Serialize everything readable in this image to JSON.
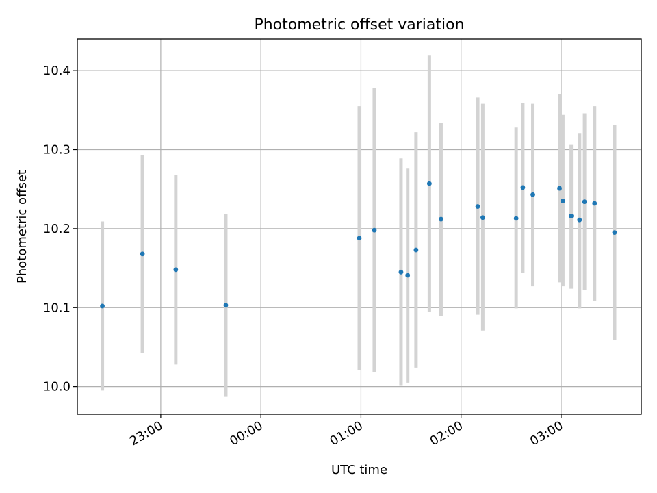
{
  "chart_data": {
    "type": "scatter",
    "title": "Photometric offset variation",
    "xlabel": "UTC time",
    "ylabel": "Photometric offset",
    "x_ticks": [
      "23:00",
      "00:00",
      "01:00",
      "02:00",
      "03:00"
    ],
    "y_ticks": [
      "10.0",
      "10.1",
      "10.2",
      "10.3",
      "10.4"
    ],
    "xlim": [
      "22:10",
      "03:48"
    ],
    "ylim": [
      9.965,
      10.44
    ],
    "grid": true,
    "colors": {
      "marker": "#1f77b4",
      "errorbar": "#d3d3d3",
      "grid": "#b0b0b0"
    },
    "series": [
      {
        "points": [
          {
            "x": "22:25",
            "y": 10.102,
            "ylow": 9.995,
            "yhigh": 10.209
          },
          {
            "x": "22:49",
            "y": 10.168,
            "ylow": 10.043,
            "yhigh": 10.293
          },
          {
            "x": "23:09",
            "y": 10.148,
            "ylow": 10.028,
            "yhigh": 10.268
          },
          {
            "x": "23:39",
            "y": 10.103,
            "ylow": 9.987,
            "yhigh": 10.219
          },
          {
            "x": "00:59",
            "y": 10.188,
            "ylow": 10.021,
            "yhigh": 10.355
          },
          {
            "x": "01:08",
            "y": 10.198,
            "ylow": 10.018,
            "yhigh": 10.378
          },
          {
            "x": "01:24",
            "y": 10.145,
            "ylow": 10.001,
            "yhigh": 10.289
          },
          {
            "x": "01:28",
            "y": 10.141,
            "ylow": 10.005,
            "yhigh": 10.276
          },
          {
            "x": "01:33",
            "y": 10.173,
            "ylow": 10.024,
            "yhigh": 10.322
          },
          {
            "x": "01:41",
            "y": 10.257,
            "ylow": 10.095,
            "yhigh": 10.419
          },
          {
            "x": "01:48",
            "y": 10.212,
            "ylow": 10.089,
            "yhigh": 10.334
          },
          {
            "x": "02:10",
            "y": 10.228,
            "ylow": 10.091,
            "yhigh": 10.366
          },
          {
            "x": "02:13",
            "y": 10.214,
            "ylow": 10.071,
            "yhigh": 10.358
          },
          {
            "x": "02:33",
            "y": 10.213,
            "ylow": 10.099,
            "yhigh": 10.328
          },
          {
            "x": "02:37",
            "y": 10.252,
            "ylow": 10.144,
            "yhigh": 10.359
          },
          {
            "x": "02:43",
            "y": 10.243,
            "ylow": 10.127,
            "yhigh": 10.358
          },
          {
            "x": "02:59",
            "y": 10.251,
            "ylow": 10.132,
            "yhigh": 10.37
          },
          {
            "x": "03:01",
            "y": 10.235,
            "ylow": 10.127,
            "yhigh": 10.344
          },
          {
            "x": "03:06",
            "y": 10.216,
            "ylow": 10.124,
            "yhigh": 10.306
          },
          {
            "x": "03:11",
            "y": 10.211,
            "ylow": 10.099,
            "yhigh": 10.321
          },
          {
            "x": "03:14",
            "y": 10.234,
            "ylow": 10.122,
            "yhigh": 10.346
          },
          {
            "x": "03:20",
            "y": 10.232,
            "ylow": 10.108,
            "yhigh": 10.355
          },
          {
            "x": "03:32",
            "y": 10.195,
            "ylow": 10.059,
            "yhigh": 10.331
          }
        ]
      }
    ]
  }
}
